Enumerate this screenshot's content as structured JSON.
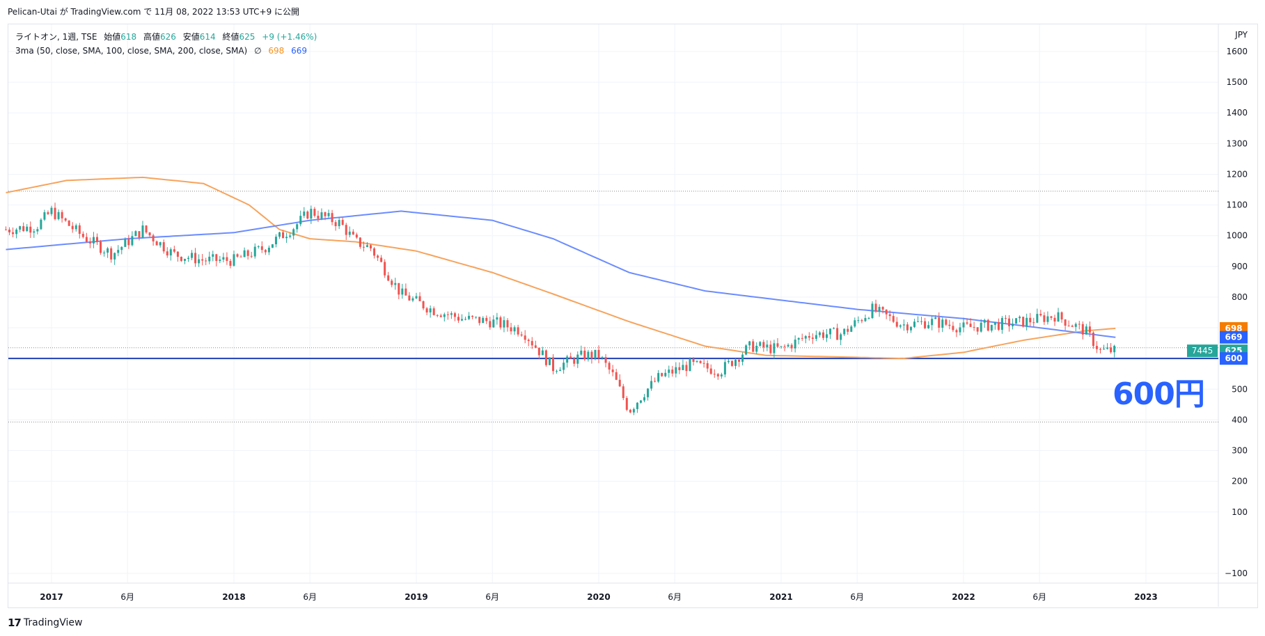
{
  "header": {
    "publish_line": "Pelican-Utai が TradingView.com で 11月 08, 2022 13:53 UTC+9 に公開"
  },
  "legend": {
    "symbol_line": "ライトオン, 1週, TSE",
    "open_label": "始値",
    "open_value": "618",
    "high_label": "高値",
    "high_value": "626",
    "low_label": "安値",
    "low_value": "614",
    "close_label": "終値",
    "close_value": "625",
    "change": "+9 (+1.46%)",
    "indicator": "3ma (50, close, SMA, 100, close, SMA, 200, close, SMA)",
    "indicator_symbol": "∅",
    "ma_values": [
      "698",
      "669"
    ]
  },
  "annotation": "600円",
  "footer": {
    "brand": "TradingView",
    "logo_text": "17"
  },
  "colors": {
    "up": "#26a69a",
    "down": "#ef5350",
    "ma100": "#f7a35c",
    "ma200": "#6b8cff",
    "accent": "#2962ff",
    "grid": "#f0f3fa"
  },
  "chart_data": {
    "type": "candlestick",
    "currency": "JPY",
    "y_ticks": [
      1600,
      1500,
      1400,
      1300,
      1200,
      1100,
      1000,
      900,
      800,
      700,
      600,
      500,
      400,
      300,
      200,
      100,
      -100
    ],
    "ylim": [
      -125,
      1655
    ],
    "x_tick_labels": [
      "2017",
      "6月",
      "2018",
      "6月",
      "2019",
      "6月",
      "2020",
      "6月",
      "2021",
      "6月",
      "2022",
      "6月",
      "2023"
    ],
    "x_tick_dates": [
      "2017-01",
      "2017-06",
      "2018-01",
      "2018-06",
      "2019-01",
      "2019-06",
      "2020-01",
      "2020-06",
      "2021-01",
      "2021-06",
      "2022-01",
      "2022-06",
      "2023-01"
    ],
    "series_anchors": {
      "candles_close": [
        [
          "2016-10",
          1020
        ],
        [
          "2016-12",
          1030
        ],
        [
          "2017-01",
          1080
        ],
        [
          "2017-03",
          1000
        ],
        [
          "2017-05",
          940
        ],
        [
          "2017-07",
          1020
        ],
        [
          "2017-09",
          940
        ],
        [
          "2017-11",
          920
        ],
        [
          "2018-01",
          920
        ],
        [
          "2018-03",
          960
        ],
        [
          "2018-05",
          1030
        ],
        [
          "2018-06",
          1080
        ],
        [
          "2018-08",
          1040
        ],
        [
          "2018-09",
          980
        ],
        [
          "2018-10",
          960
        ],
        [
          "2018-12",
          810
        ],
        [
          "2019-02",
          760
        ],
        [
          "2019-04",
          730
        ],
        [
          "2019-06",
          720
        ],
        [
          "2019-08",
          690
        ],
        [
          "2019-10",
          570
        ],
        [
          "2019-12",
          610
        ],
        [
          "2020-01",
          610
        ],
        [
          "2020-02",
          540
        ],
        [
          "2020-03",
          430
        ],
        [
          "2020-04",
          490
        ],
        [
          "2020-05",
          540
        ],
        [
          "2020-07",
          580
        ],
        [
          "2020-09",
          560
        ],
        [
          "2020-11",
          640
        ],
        [
          "2021-01",
          630
        ],
        [
          "2021-03",
          680
        ],
        [
          "2021-05",
          680
        ],
        [
          "2021-07",
          760
        ],
        [
          "2021-09",
          710
        ],
        [
          "2021-11",
          720
        ],
        [
          "2022-01",
          700
        ],
        [
          "2022-03",
          710
        ],
        [
          "2022-05",
          720
        ],
        [
          "2022-07",
          740
        ],
        [
          "2022-09",
          690
        ],
        [
          "2022-10",
          625
        ],
        [
          "2022-11",
          625
        ]
      ],
      "sma100": [
        [
          "2016-10",
          1140
        ],
        [
          "2017-02",
          1180
        ],
        [
          "2017-07",
          1190
        ],
        [
          "2017-11",
          1170
        ],
        [
          "2018-02",
          1100
        ],
        [
          "2018-04",
          1020
        ],
        [
          "2018-06",
          990
        ],
        [
          "2018-09",
          980
        ],
        [
          "2019-01",
          950
        ],
        [
          "2019-06",
          880
        ],
        [
          "2019-10",
          810
        ],
        [
          "2020-03",
          720
        ],
        [
          "2020-08",
          640
        ],
        [
          "2020-12",
          610
        ],
        [
          "2021-05",
          605
        ],
        [
          "2021-09",
          600
        ],
        [
          "2022-01",
          620
        ],
        [
          "2022-05",
          660
        ],
        [
          "2022-09",
          690
        ],
        [
          "2022-11",
          698
        ]
      ],
      "sma200": [
        [
          "2016-10",
          955
        ],
        [
          "2017-06",
          990
        ],
        [
          "2018-01",
          1010
        ],
        [
          "2018-06",
          1050
        ],
        [
          "2018-12",
          1080
        ],
        [
          "2019-06",
          1050
        ],
        [
          "2019-10",
          990
        ],
        [
          "2020-03",
          880
        ],
        [
          "2020-08",
          820
        ],
        [
          "2021-01",
          790
        ],
        [
          "2021-06",
          760
        ],
        [
          "2022-01",
          730
        ],
        [
          "2022-06",
          700
        ],
        [
          "2022-11",
          669
        ]
      ]
    },
    "horizontal_lines": [
      {
        "value": 1145,
        "style": "dotted"
      },
      {
        "value": 635,
        "style": "dotted"
      },
      {
        "value": 600,
        "style": "solid"
      },
      {
        "value": 393,
        "style": "dotted"
      }
    ],
    "price_tags": [
      {
        "text": "698",
        "value": 698,
        "color": "#f57c00"
      },
      {
        "text": "669",
        "value": 669,
        "color": "#2962ff"
      },
      {
        "text": "625",
        "value": 625,
        "color": "#26a69a"
      },
      {
        "text": "600",
        "value": 600,
        "color": "#2962ff"
      }
    ],
    "countdown_tag": {
      "text": "7445",
      "color": "#26a69a"
    }
  }
}
